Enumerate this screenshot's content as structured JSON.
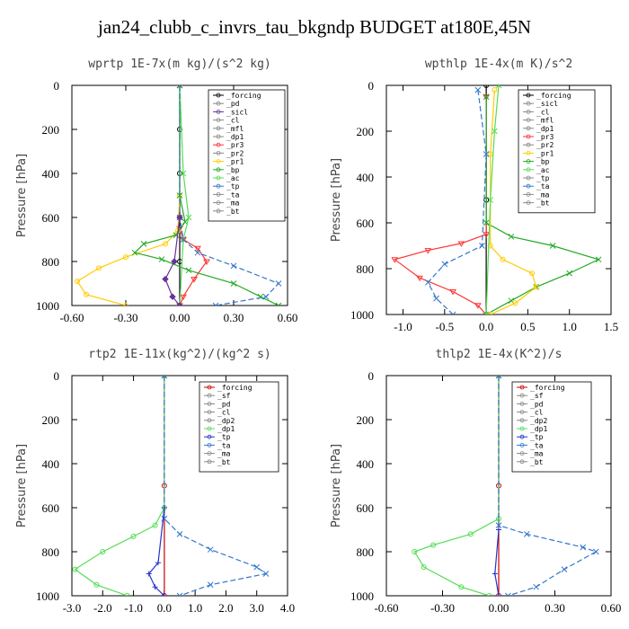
{
  "title": "jan24_clubb_c_invrs_tau_bkgndp  BUDGET at180E,45N",
  "chart_data": [
    {
      "type": "line",
      "title": "wprtp  1E-7x(m kg)/(s^2 kg)",
      "ylabel": "Pressure [hPa]",
      "xlim": [
        -0.6,
        0.6
      ],
      "ylim": [
        1000,
        0
      ],
      "xticks": [
        "-0.60",
        "-0.30",
        "0.00",
        "0.30",
        "0.60"
      ],
      "yticks": [
        "0",
        "200",
        "400",
        "600",
        "800",
        "1000"
      ],
      "legend": [
        "_forcing",
        "_pd",
        "_sicl",
        "_cl",
        "_mfl",
        "_dp1",
        "_pr3",
        "_pr2",
        "_pr1",
        "_bp",
        "_ac",
        "_tp",
        "_ta",
        "_ma",
        "_bt"
      ],
      "series": [
        {
          "name": "_forcing",
          "color": "#000000",
          "dash": "",
          "marker": "o",
          "points": [
            [
              0,
              0
            ],
            [
              0,
              200
            ],
            [
              0,
              400
            ],
            [
              0,
              600
            ],
            [
              0,
              800
            ],
            [
              0,
              1000
            ]
          ]
        },
        {
          "name": "_pr3",
          "color": "#ff3333",
          "dash": "",
          "marker": "v",
          "points": [
            [
              0,
              650
            ],
            [
              0.02,
              700
            ],
            [
              0.1,
              740
            ],
            [
              0.15,
              800
            ],
            [
              0.08,
              880
            ],
            [
              0.02,
              960
            ],
            [
              0,
              1000
            ]
          ]
        },
        {
          "name": "_pr1",
          "color": "#ffcc00",
          "dash": "",
          "marker": "o",
          "points": [
            [
              0,
              0
            ],
            [
              0,
              500
            ],
            [
              -0.01,
              660
            ],
            [
              -0.08,
              720
            ],
            [
              -0.3,
              780
            ],
            [
              -0.45,
              830
            ],
            [
              -0.57,
              890
            ],
            [
              -0.52,
              950
            ],
            [
              -0.3,
              1000
            ]
          ]
        },
        {
          "name": "_bp",
          "color": "#22aa22",
          "dash": "",
          "marker": "x",
          "points": [
            [
              0,
              0
            ],
            [
              0,
              500
            ],
            [
              0.03,
              620
            ],
            [
              -0.02,
              680
            ],
            [
              -0.2,
              720
            ],
            [
              -0.25,
              760
            ],
            [
              -0.1,
              790
            ],
            [
              0.05,
              840
            ],
            [
              0.3,
              900
            ],
            [
              0.45,
              960
            ],
            [
              0.55,
              1000
            ]
          ]
        },
        {
          "name": "_ac",
          "color": "#55dd55",
          "dash": "",
          "marker": "x",
          "points": [
            [
              0,
              0
            ],
            [
              0.02,
              400
            ],
            [
              0.05,
              600
            ],
            [
              0.02,
              700
            ],
            [
              0,
              1000
            ]
          ]
        },
        {
          "name": "_tp",
          "color": "#3377cc",
          "dash": "6 3",
          "marker": "x",
          "points": [
            [
              0,
              0
            ],
            [
              0,
              600
            ],
            [
              0.02,
              700
            ],
            [
              0.1,
              760
            ],
            [
              0.3,
              820
            ],
            [
              0.55,
              900
            ],
            [
              0.48,
              960
            ],
            [
              0.2,
              1000
            ]
          ]
        },
        {
          "name": "_sicl",
          "color": "#663399",
          "dash": "",
          "marker": "d",
          "points": [
            [
              0,
              600
            ],
            [
              -0.03,
              800
            ],
            [
              -0.08,
              880
            ],
            [
              -0.04,
              960
            ],
            [
              0,
              1000
            ]
          ]
        }
      ]
    },
    {
      "type": "line",
      "title": "wpthlp  1E-4x(m K)/s^2",
      "ylabel": "Pressure [hPa]",
      "xlim": [
        -1.2,
        1.5
      ],
      "ylim": [
        1000,
        0
      ],
      "xticks": [
        "-1.0",
        "-0.5",
        "0.0",
        "0.5",
        "1.0",
        "1.5"
      ],
      "yticks": [
        "0",
        "200",
        "400",
        "600",
        "800",
        "1000"
      ],
      "legend": [
        "_forcing",
        "_sicl",
        "_cl",
        "_mfl",
        "_dp1",
        "_pr3",
        "_pr2",
        "_pr1",
        "_bp",
        "_ac",
        "_tp",
        "_ta",
        "_ma",
        "_bt"
      ],
      "series": [
        {
          "name": "_forcing",
          "color": "#000000",
          "dash": "",
          "marker": "o",
          "points": [
            [
              0,
              0
            ],
            [
              0,
              500
            ],
            [
              0,
              1000
            ]
          ]
        },
        {
          "name": "_pr3",
          "color": "#ff3333",
          "dash": "",
          "marker": "v",
          "points": [
            [
              0,
              50
            ],
            [
              0,
              650
            ],
            [
              -0.3,
              690
            ],
            [
              -0.7,
              720
            ],
            [
              -1.1,
              760
            ],
            [
              -0.8,
              840
            ],
            [
              -0.4,
              900
            ],
            [
              -0.1,
              960
            ],
            [
              0,
              1000
            ]
          ]
        },
        {
          "name": "_bp",
          "color": "#22aa22",
          "dash": "",
          "marker": "x",
          "points": [
            [
              0,
              50
            ],
            [
              0,
              600
            ],
            [
              0.3,
              660
            ],
            [
              0.8,
              700
            ],
            [
              1.35,
              760
            ],
            [
              1.0,
              820
            ],
            [
              0.6,
              880
            ],
            [
              0.3,
              940
            ],
            [
              0,
              1000
            ]
          ]
        },
        {
          "name": "_pr1",
          "color": "#ffcc00",
          "dash": "",
          "marker": "o",
          "points": [
            [
              0.1,
              20
            ],
            [
              0.05,
              300
            ],
            [
              0.05,
              700
            ],
            [
              0.2,
              760
            ],
            [
              0.55,
              820
            ],
            [
              0.6,
              880
            ],
            [
              0.35,
              950
            ],
            [
              0.05,
              1000
            ]
          ]
        },
        {
          "name": "_ta",
          "color": "#3377cc",
          "dash": "6 3",
          "marker": "x",
          "points": [
            [
              -0.1,
              20
            ],
            [
              0,
              300
            ],
            [
              -0.05,
              700
            ],
            [
              -0.5,
              780
            ],
            [
              -0.7,
              860
            ],
            [
              -0.6,
              930
            ],
            [
              -0.4,
              1000
            ]
          ]
        },
        {
          "name": "_ac",
          "color": "#55dd55",
          "dash": "",
          "marker": "x",
          "points": [
            [
              0.15,
              0
            ],
            [
              0.1,
              200
            ],
            [
              0.05,
              500
            ],
            [
              0,
              1000
            ]
          ]
        }
      ]
    },
    {
      "type": "line",
      "title": "rtp2  1E-11x(kg^2)/(kg^2 s)",
      "ylabel": "Pressure [hPa]",
      "xlim": [
        -3.0,
        4.0
      ],
      "ylim": [
        1000,
        0
      ],
      "xticks": [
        "-3.0",
        "-2.0",
        "-1.0",
        "0.0",
        "1.0",
        "2.0",
        "3.0",
        "4.0"
      ],
      "yticks": [
        "0",
        "200",
        "400",
        "600",
        "800",
        "1000"
      ],
      "legend": [
        "_forcing",
        "_sf",
        "_pd",
        "_cl",
        "_dp2",
        "_dp1",
        "_tp",
        "_ta",
        "_ma",
        "_bt"
      ],
      "series": [
        {
          "name": "_forcing",
          "color": "#cc0000",
          "dash": "",
          "marker": "o",
          "points": [
            [
              0,
              0
            ],
            [
              0,
              500
            ],
            [
              0,
              1000
            ]
          ]
        },
        {
          "name": "_dp1",
          "color": "#55dd55",
          "dash": "",
          "marker": "o",
          "points": [
            [
              0,
              0
            ],
            [
              0,
              600
            ],
            [
              -0.3,
              680
            ],
            [
              -1.0,
              730
            ],
            [
              -2.0,
              800
            ],
            [
              -2.9,
              880
            ],
            [
              -2.2,
              950
            ],
            [
              -1.2,
              1000
            ]
          ]
        },
        {
          "name": "_ta",
          "color": "#3377cc",
          "dash": "6 3",
          "marker": "x",
          "points": [
            [
              0,
              0
            ],
            [
              0,
              650
            ],
            [
              0.5,
              720
            ],
            [
              1.5,
              790
            ],
            [
              3.0,
              870
            ],
            [
              3.3,
              900
            ],
            [
              1.5,
              950
            ],
            [
              0.5,
              1000
            ]
          ]
        },
        {
          "name": "_tp",
          "color": "#2233cc",
          "dash": "",
          "marker": "+",
          "points": [
            [
              0,
              600
            ],
            [
              -0.2,
              850
            ],
            [
              -0.5,
              900
            ],
            [
              -0.3,
              960
            ],
            [
              0,
              1000
            ]
          ]
        }
      ]
    },
    {
      "type": "line",
      "title": "thlp2  1E-4x(K^2)/s",
      "ylabel": "Pressure [hPa]",
      "xlim": [
        -0.6,
        0.6
      ],
      "ylim": [
        1000,
        0
      ],
      "xticks": [
        "-0.60",
        "-0.30",
        "0.00",
        "0.30",
        "0.60"
      ],
      "yticks": [
        "0",
        "200",
        "400",
        "600",
        "800",
        "1000"
      ],
      "legend": [
        "_forcing",
        "_sf",
        "_pd",
        "_cl",
        "_dp2",
        "_dp1",
        "_tp",
        "_ta",
        "_ma",
        "_bt"
      ],
      "series": [
        {
          "name": "_forcing",
          "color": "#cc0000",
          "dash": "",
          "marker": "o",
          "points": [
            [
              0,
              0
            ],
            [
              0,
              500
            ],
            [
              0,
              1000
            ]
          ]
        },
        {
          "name": "_dp1",
          "color": "#55dd55",
          "dash": "",
          "marker": "o",
          "points": [
            [
              0,
              0
            ],
            [
              0,
              650
            ],
            [
              -0.15,
              720
            ],
            [
              -0.35,
              770
            ],
            [
              -0.45,
              800
            ],
            [
              -0.4,
              870
            ],
            [
              -0.2,
              960
            ],
            [
              -0.05,
              1000
            ]
          ]
        },
        {
          "name": "_ta",
          "color": "#3377cc",
          "dash": "6 3",
          "marker": "x",
          "points": [
            [
              0,
              0
            ],
            [
              0,
              680
            ],
            [
              0.15,
              720
            ],
            [
              0.45,
              780
            ],
            [
              0.52,
              800
            ],
            [
              0.35,
              880
            ],
            [
              0.2,
              960
            ],
            [
              0.05,
              1000
            ]
          ]
        },
        {
          "name": "_tp",
          "color": "#2233cc",
          "dash": "",
          "marker": "+",
          "points": [
            [
              0,
              700
            ],
            [
              -0.02,
              900
            ],
            [
              0,
              1000
            ]
          ]
        }
      ]
    }
  ]
}
